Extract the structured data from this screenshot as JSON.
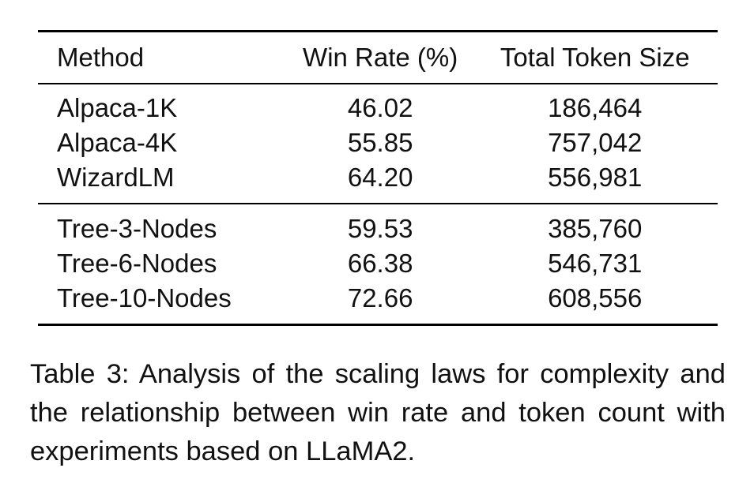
{
  "table": {
    "headers": [
      "Method",
      "Win Rate (%)",
      "Total Token Size"
    ],
    "groups": [
      [
        [
          "Alpaca-1K",
          "46.02",
          "186,464"
        ],
        [
          "Alpaca-4K",
          "55.85",
          "757,042"
        ],
        [
          "WizardLM",
          "64.20",
          "556,981"
        ]
      ],
      [
        [
          "Tree-3-Nodes",
          "59.53",
          "385,760"
        ],
        [
          "Tree-6-Nodes",
          "66.38",
          "546,731"
        ],
        [
          "Tree-10-Nodes",
          "72.66",
          "608,556"
        ]
      ]
    ]
  },
  "caption": "Table 3: Analysis of the scaling laws for complexity and the relationship between win rate and token count with experiments based on LLaMA2."
}
